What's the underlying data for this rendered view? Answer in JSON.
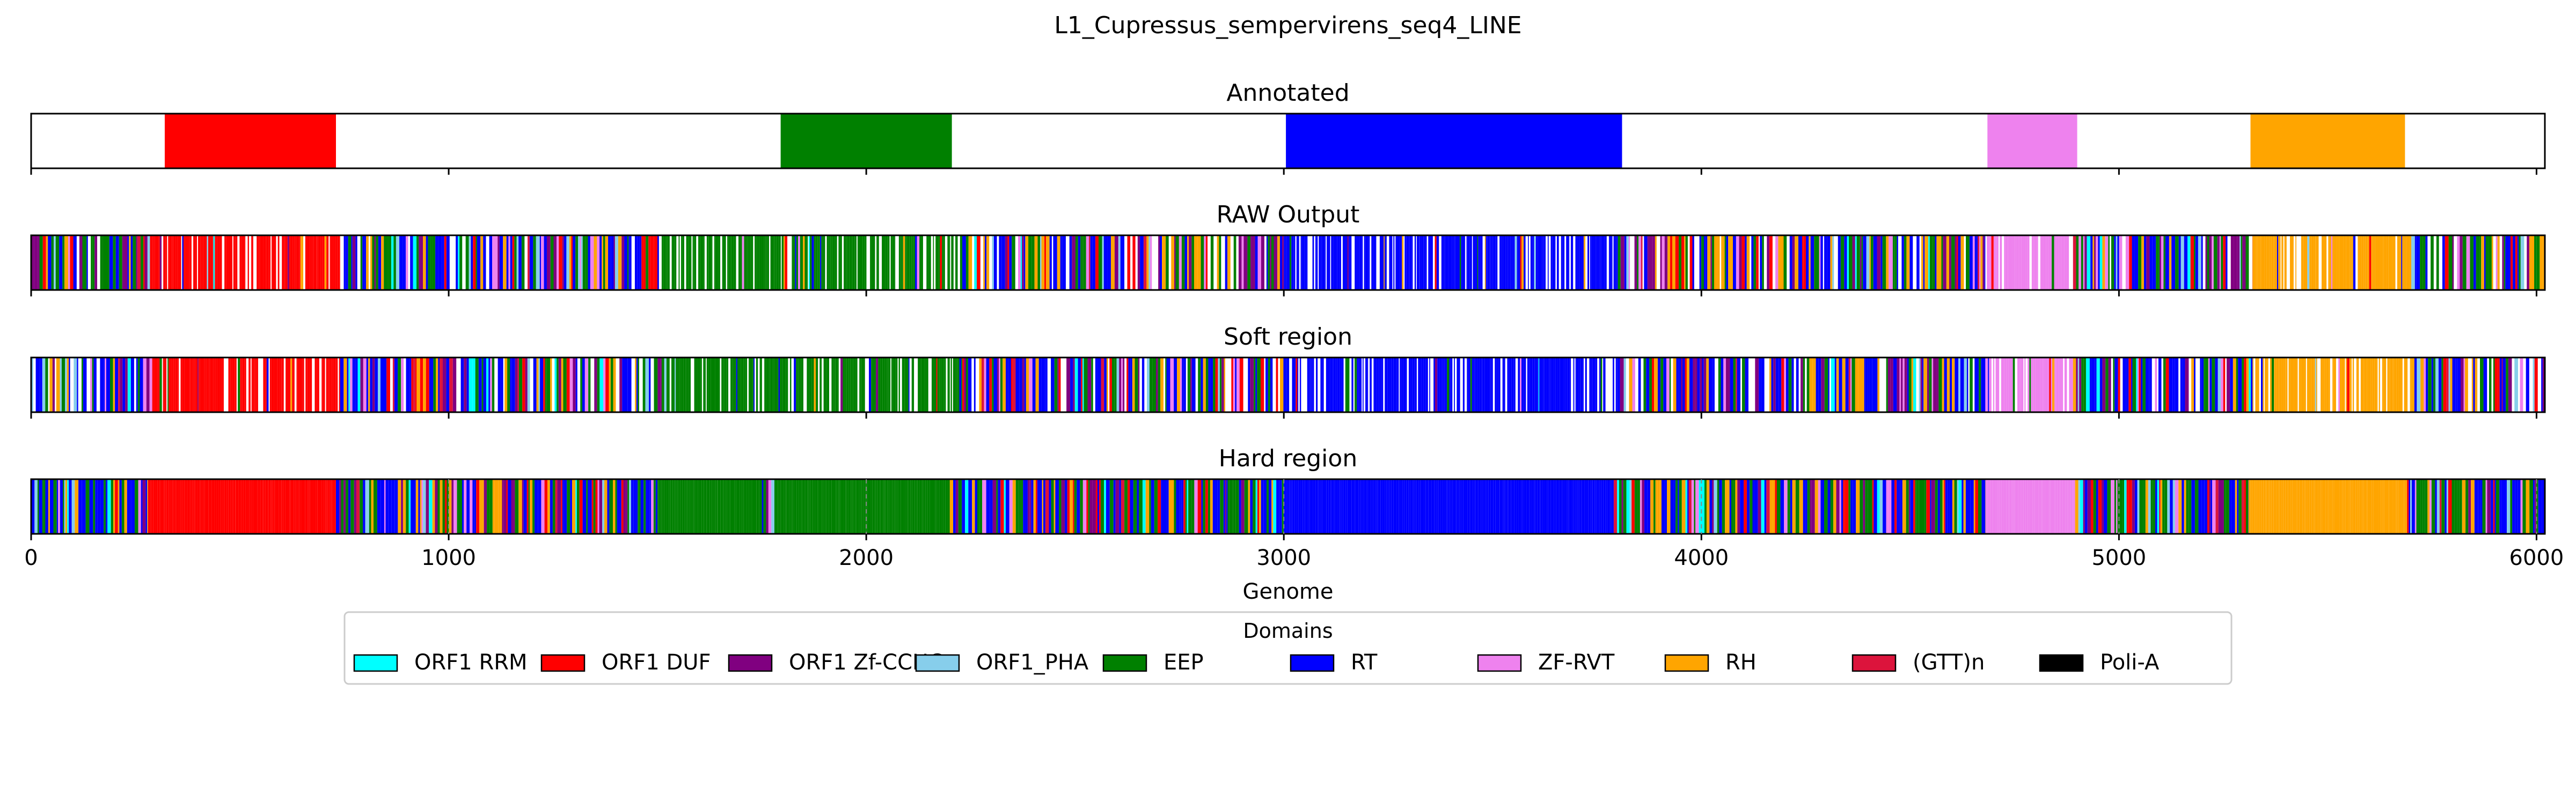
{
  "chart_data": {
    "type": "genome_track",
    "title": "L1_Cupressus_sempervirens_seq4_LINE",
    "xlabel": "Genome",
    "xlim": [
      0,
      6020
    ],
    "xticks": [
      0,
      1000,
      2000,
      3000,
      4000,
      5000,
      6000
    ],
    "colors": {
      "ORF1 RRM": "#00ffff",
      "ORF1 DUF": "#ff0000",
      "ORF1 Zf-CCHC": "#800080",
      "ORF1_PHA": "#87ceeb",
      "EEP": "#008000",
      "RT": "#0000ff",
      "ZF-RVT": "#ee82ee",
      "RH": "#ffa500",
      "(GTT)n": "#dc143c",
      "Poli-A": "#000000"
    },
    "panels": [
      {
        "title": "Annotated",
        "segments": [
          {
            "domain": "ORF1 DUF",
            "start": 320,
            "end": 730
          },
          {
            "domain": "EEP",
            "start": 1795,
            "end": 2205
          },
          {
            "domain": "RT",
            "start": 3005,
            "end": 3810
          },
          {
            "domain": "ZF-RVT",
            "start": 4685,
            "end": 4900
          },
          {
            "domain": "RH",
            "start": 5315,
            "end": 5685
          }
        ]
      },
      {
        "title": "RAW Output",
        "profile": [
          {
            "domain": "mixed",
            "start": 0,
            "end": 290
          },
          {
            "domain": "ORF1 DUF",
            "start": 290,
            "end": 740
          },
          {
            "domain": "mixed",
            "start": 740,
            "end": 1510
          },
          {
            "domain": "EEP",
            "start": 1510,
            "end": 2230
          },
          {
            "domain": "mixed",
            "start": 2230,
            "end": 3000
          },
          {
            "domain": "RT",
            "start": 3000,
            "end": 3800
          },
          {
            "domain": "mixed",
            "start": 3800,
            "end": 4680
          },
          {
            "domain": "ZF-RVT",
            "start": 4680,
            "end": 4890
          },
          {
            "domain": "mixed",
            "start": 4890,
            "end": 5320
          },
          {
            "domain": "RH",
            "start": 5320,
            "end": 5700
          },
          {
            "domain": "mixed",
            "start": 5700,
            "end": 6020
          }
        ]
      },
      {
        "title": "Soft region",
        "profile": [
          {
            "domain": "mixed",
            "start": 0,
            "end": 290
          },
          {
            "domain": "ORF1 DUF",
            "start": 290,
            "end": 740
          },
          {
            "domain": "mixed",
            "start": 740,
            "end": 1510
          },
          {
            "domain": "EEP",
            "start": 1510,
            "end": 2230
          },
          {
            "domain": "mixed",
            "start": 2230,
            "end": 3000
          },
          {
            "domain": "RT",
            "start": 3000,
            "end": 3800
          },
          {
            "domain": "mixed",
            "start": 3800,
            "end": 4680
          },
          {
            "domain": "ZF-RVT",
            "start": 4680,
            "end": 4890
          },
          {
            "domain": "mixed",
            "start": 4890,
            "end": 5320
          },
          {
            "domain": "RH",
            "start": 5320,
            "end": 5700
          },
          {
            "domain": "mixed",
            "start": 5700,
            "end": 6020
          }
        ]
      },
      {
        "title": "Hard region",
        "profile": [
          {
            "domain": "mixed",
            "start": 0,
            "end": 280
          },
          {
            "domain": "ORF1 DUF",
            "start": 280,
            "end": 730
          },
          {
            "domain": "mixed",
            "start": 730,
            "end": 1500
          },
          {
            "domain": "EEP",
            "start": 1500,
            "end": 1750
          },
          {
            "domain": "mixed",
            "start": 1750,
            "end": 1780
          },
          {
            "domain": "EEP",
            "start": 1780,
            "end": 2200
          },
          {
            "domain": "mixed",
            "start": 2200,
            "end": 3000
          },
          {
            "domain": "RT",
            "start": 3000,
            "end": 3790
          },
          {
            "domain": "mixed",
            "start": 3790,
            "end": 4680
          },
          {
            "domain": "ZF-RVT",
            "start": 4680,
            "end": 4895
          },
          {
            "domain": "mixed",
            "start": 4895,
            "end": 5310
          },
          {
            "domain": "RH",
            "start": 5310,
            "end": 5690
          },
          {
            "domain": "mixed",
            "start": 5690,
            "end": 6020
          }
        ]
      }
    ],
    "legend": {
      "title": "Domains",
      "placement": "bottom-center",
      "items": [
        "ORF1 RRM",
        "ORF1 DUF",
        "ORF1 Zf-CCHC",
        "ORF1_PHA",
        "EEP",
        "RT",
        "ZF-RVT",
        "RH",
        "(GTT)n",
        "Poli-A"
      ]
    }
  }
}
